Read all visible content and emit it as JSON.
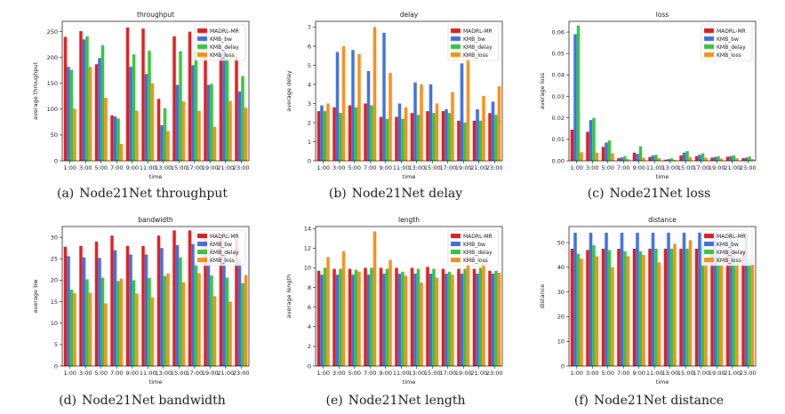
{
  "colors": {
    "MADRL-MR": "#e31a1c",
    "KMB_bw": "#3c6fe0",
    "KMB_delay": "#2fc83a",
    "KMB_loss": "#ff8c10"
  },
  "chart_data": [
    {
      "type": "bar",
      "title": "throughput",
      "xlabel": "time",
      "ylabel": "average throughput",
      "caption_label": "(a)",
      "caption_text": "Node21Net throughput",
      "categories": [
        "1:00",
        "3:00",
        "5:00",
        "7:00",
        "9:00",
        "11:00",
        "13:00",
        "15:00",
        "17:00",
        "19:00",
        "21:00",
        "23:00"
      ],
      "ylim": [
        0,
        270
      ],
      "yticks": [
        0,
        50,
        100,
        150,
        200,
        250
      ],
      "ytick_labels": [
        "0",
        "50",
        "100",
        "150",
        "200",
        "250"
      ],
      "series": [
        {
          "name": "MADRL-MR",
          "values": [
            240,
            251,
            187,
            88,
            258,
            256,
            120,
            241,
            250,
            204,
            205,
            202
          ]
        },
        {
          "name": "KMB_bw",
          "values": [
            182,
            235,
            199,
            86,
            182,
            168,
            69,
            147,
            185,
            147,
            215,
            134
          ]
        },
        {
          "name": "KMB_delay",
          "values": [
            176,
            241,
            224,
            82,
            206,
            213,
            102,
            212,
            212,
            149,
            205,
            164
          ]
        },
        {
          "name": "KMB_loss",
          "values": [
            101,
            182,
            122,
            33,
            97,
            150,
            58,
            115,
            97,
            66,
            116,
            103
          ]
        }
      ]
    },
    {
      "type": "bar",
      "title": "delay",
      "xlabel": "time",
      "ylabel": "average delay",
      "caption_label": "(b)",
      "caption_text": "Node21Net delay",
      "categories": [
        "1:00",
        "3:00",
        "5:00",
        "7:00",
        "9:00",
        "11:00",
        "13:00",
        "15:00",
        "17:00",
        "19:00",
        "21:00",
        "23:00"
      ],
      "ylim": [
        0,
        7.3
      ],
      "yticks": [
        0,
        1,
        2,
        3,
        4,
        5,
        6,
        7
      ],
      "ytick_labels": [
        "0",
        "1",
        "2",
        "3",
        "4",
        "5",
        "6",
        "7"
      ],
      "series": [
        {
          "name": "MADRL-MR",
          "values": [
            2.6,
            2.8,
            2.9,
            3.0,
            2.3,
            2.3,
            2.5,
            2.6,
            2.6,
            2.1,
            2.1,
            2.5
          ]
        },
        {
          "name": "KMB_bw",
          "values": [
            2.9,
            5.7,
            5.8,
            4.7,
            6.7,
            3.0,
            4.1,
            4.0,
            2.7,
            5.1,
            2.7,
            3.1
          ]
        },
        {
          "name": "KMB_delay",
          "values": [
            2.6,
            2.5,
            2.8,
            2.9,
            2.2,
            2.2,
            2.4,
            2.5,
            2.5,
            2.0,
            2.1,
            2.4
          ]
        },
        {
          "name": "KMB_loss",
          "values": [
            3.0,
            6.0,
            5.6,
            7.0,
            4.6,
            2.8,
            4.0,
            3.0,
            3.6,
            5.6,
            3.4,
            3.9
          ]
        }
      ]
    },
    {
      "type": "bar",
      "title": "loss",
      "xlabel": "time",
      "ylabel": "average loss",
      "caption_label": "(c)",
      "caption_text": "Node21Net loss",
      "categories": [
        "1:00",
        "3:00",
        "5:00",
        "7:00",
        "9:00",
        "11:00",
        "13:00",
        "15:00",
        "17:00",
        "19:00",
        "21:00",
        "23:00"
      ],
      "ylim": [
        0,
        0.065
      ],
      "yticks": [
        0,
        0.01,
        0.02,
        0.03,
        0.04,
        0.05,
        0.06
      ],
      "ytick_labels": [
        "0.00",
        "0.01",
        "0.02",
        "0.03",
        "0.04",
        "0.05",
        "0.06"
      ],
      "series": [
        {
          "name": "MADRL-MR",
          "values": [
            0.0145,
            0.0135,
            0.0065,
            0.0012,
            0.0038,
            0.0018,
            0.0005,
            0.0025,
            0.0022,
            0.0015,
            0.0019,
            0.0012
          ]
        },
        {
          "name": "KMB_bw",
          "values": [
            0.059,
            0.019,
            0.0085,
            0.0016,
            0.0032,
            0.0025,
            0.0008,
            0.0038,
            0.0028,
            0.0018,
            0.0022,
            0.0015
          ]
        },
        {
          "name": "KMB_delay",
          "values": [
            0.063,
            0.02,
            0.0095,
            0.0022,
            0.0068,
            0.0028,
            0.0012,
            0.0045,
            0.0035,
            0.0022,
            0.0025,
            0.002
          ]
        },
        {
          "name": "KMB_loss",
          "values": [
            0.004,
            0.0038,
            0.0035,
            0.0008,
            0.0015,
            0.0012,
            0.0004,
            0.0018,
            0.0015,
            0.001,
            0.0012,
            0.0008
          ]
        }
      ]
    },
    {
      "type": "bar",
      "title": "bandwidth",
      "xlabel": "time",
      "ylabel": "average bw",
      "caption_label": "(d)",
      "caption_text": "Node21Net bandwidth",
      "categories": [
        "1:00",
        "3:00",
        "5:00",
        "7:00",
        "9:00",
        "11:00",
        "13:00",
        "15:00",
        "17:00",
        "19:00",
        "21:00",
        "23:00"
      ],
      "ylim": [
        0,
        32.5
      ],
      "yticks": [
        0,
        5,
        10,
        15,
        20,
        25,
        30
      ],
      "ytick_labels": [
        "0",
        "5",
        "10",
        "15",
        "20",
        "25",
        "30"
      ],
      "series": [
        {
          "name": "MADRL-MR",
          "values": [
            27.8,
            28.0,
            29.0,
            30.4,
            28.0,
            28.0,
            30.4,
            31.6,
            31.6,
            30.0,
            30.0,
            29.7
          ]
        },
        {
          "name": "KMB_bw",
          "values": [
            25.6,
            25.3,
            25.2,
            27.0,
            26.0,
            26.0,
            27.5,
            28.2,
            28.4,
            24.7,
            26.0,
            24.9
          ]
        },
        {
          "name": "KMB_delay",
          "values": [
            17.8,
            20.2,
            20.6,
            19.8,
            20.0,
            20.5,
            21.0,
            25.3,
            23.8,
            21.1,
            20.6,
            19.3
          ]
        },
        {
          "name": "KMB_loss",
          "values": [
            17.0,
            17.1,
            14.6,
            20.4,
            16.9,
            16.0,
            21.6,
            19.5,
            21.6,
            16.3,
            15.0,
            21.2
          ]
        }
      ]
    },
    {
      "type": "bar",
      "title": "length",
      "xlabel": "time",
      "ylabel": "average length",
      "caption_label": "(e)",
      "caption_text": "Node21Net length",
      "categories": [
        "1:00",
        "3:00",
        "5:00",
        "7:00",
        "9:00",
        "11:00",
        "13:00",
        "15:00",
        "17:00",
        "19:00",
        "21:00",
        "23:00"
      ],
      "ylim": [
        0,
        14.2
      ],
      "yticks": [
        0,
        2,
        4,
        6,
        8,
        10,
        12,
        14
      ],
      "ytick_labels": [
        "0",
        "2",
        "4",
        "6",
        "8",
        "10",
        "12",
        "14"
      ],
      "series": [
        {
          "name": "MADRL-MR",
          "values": [
            9.7,
            9.9,
            9.9,
            10.0,
            10.0,
            10.0,
            10.0,
            10.1,
            9.9,
            9.9,
            9.9,
            9.7
          ]
        },
        {
          "name": "KMB_bw",
          "values": [
            9.3,
            9.3,
            9.3,
            9.3,
            9.4,
            9.4,
            9.4,
            9.4,
            9.4,
            9.4,
            9.4,
            9.4
          ]
        },
        {
          "name": "KMB_delay",
          "values": [
            10.0,
            9.9,
            9.8,
            10.0,
            9.9,
            9.6,
            9.9,
            9.9,
            9.6,
            9.9,
            10.0,
            9.7
          ]
        },
        {
          "name": "KMB_loss",
          "values": [
            11.1,
            11.7,
            9.6,
            13.7,
            10.8,
            9.2,
            8.5,
            9.0,
            9.3,
            11.4,
            10.8,
            9.5
          ]
        }
      ]
    },
    {
      "type": "bar",
      "title": "distance",
      "xlabel": "time",
      "ylabel": "distance",
      "caption_label": "(f)",
      "caption_text": "Node21Net distance",
      "categories": [
        "1:00",
        "3:00",
        "5:00",
        "7:00",
        "9:00",
        "11:00",
        "13:00",
        "15:00",
        "17:00",
        "19:00",
        "21:00",
        "23:00"
      ],
      "ylim": [
        0,
        56.5
      ],
      "yticks": [
        0,
        10,
        20,
        30,
        40,
        50
      ],
      "ytick_labels": [
        "0",
        "10",
        "20",
        "30",
        "40",
        "50"
      ],
      "series": [
        {
          "name": "MADRL-MR",
          "values": [
            47.5,
            47.0,
            47.5,
            47.5,
            47.5,
            47.5,
            47.5,
            47.5,
            47.5,
            47.0,
            47.0,
            47.0
          ]
        },
        {
          "name": "KMB_bw",
          "values": [
            54.0,
            54.0,
            54.0,
            54.0,
            54.0,
            54.0,
            54.0,
            54.0,
            54.0,
            54.0,
            54.0,
            54.0
          ]
        },
        {
          "name": "KMB_delay",
          "values": [
            45.5,
            49.0,
            47.0,
            46.5,
            46.5,
            47.5,
            47.5,
            47.5,
            49.5,
            45.0,
            45.0,
            43.5
          ]
        },
        {
          "name": "KMB_loss",
          "values": [
            43.5,
            44.5,
            40.0,
            44.5,
            45.0,
            42.0,
            49.5,
            51.0,
            43.5,
            41.0,
            41.5,
            41.0
          ]
        }
      ]
    }
  ]
}
